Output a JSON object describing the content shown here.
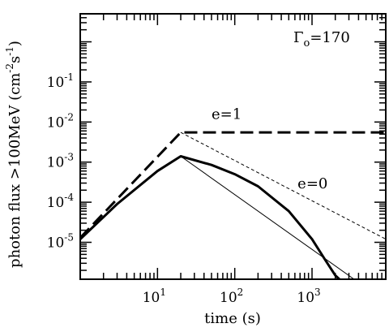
{
  "chart_data": {
    "type": "line",
    "xlabel": "time (s)",
    "ylabel": "photon flux >100MeV (cm",
    "ylabel_sup1": "-2",
    "ylabel_mid": "s",
    "ylabel_sup2": "-1",
    "ylabel_end": ")",
    "x_scale": "log",
    "y_scale": "log",
    "xlim": [
      1,
      9000
    ],
    "ylim": [
      1.2e-06,
      5
    ],
    "x_ticks": [
      {
        "value": 10,
        "base": "10",
        "exp": "1"
      },
      {
        "value": 100,
        "base": "10",
        "exp": "2"
      },
      {
        "value": 1000,
        "base": "10",
        "exp": "3"
      }
    ],
    "y_ticks": [
      {
        "value": 1e-05,
        "base": "10",
        "exp": "-5"
      },
      {
        "value": 0.0001,
        "base": "10",
        "exp": "-4"
      },
      {
        "value": 0.001,
        "base": "10",
        "exp": "-3"
      },
      {
        "value": 0.01,
        "base": "10",
        "exp": "-2"
      },
      {
        "value": 0.1,
        "base": "10",
        "exp": "-1"
      }
    ],
    "grid": false,
    "annotations": [
      {
        "text": "e=1",
        "x": 50,
        "y": 0.012
      },
      {
        "text": "e=0",
        "x": 650,
        "y": 0.00022
      }
    ],
    "title_gamma": {
      "symbol": "Γ",
      "sub": "o",
      "text": "=170"
    },
    "series": [
      {
        "style": "dashed-thick",
        "x": [
          1,
          20,
          9000
        ],
        "y": [
          1.3e-05,
          0.0055,
          0.0055
        ]
      },
      {
        "style": "dashed-thin",
        "x": [
          20,
          9000
        ],
        "y": [
          0.0055,
          1.2e-05
        ]
      },
      {
        "style": "solid-thin",
        "x": [
          20,
          3500
        ],
        "y": [
          0.0014,
          1.2e-06
        ]
      },
      {
        "style": "solid-thick",
        "x": [
          1,
          3,
          10,
          20,
          50,
          100,
          200,
          500,
          1000,
          1500,
          2000,
          2500
        ],
        "y": [
          1.2e-05,
          9e-05,
          0.0006,
          0.0014,
          0.00085,
          0.0005,
          0.00025,
          6e-05,
          1.2e-05,
          3.5e-06,
          1.5e-06,
          1e-06
        ]
      }
    ],
    "colors": {
      "line": "#000000",
      "frame": "#000000"
    }
  }
}
